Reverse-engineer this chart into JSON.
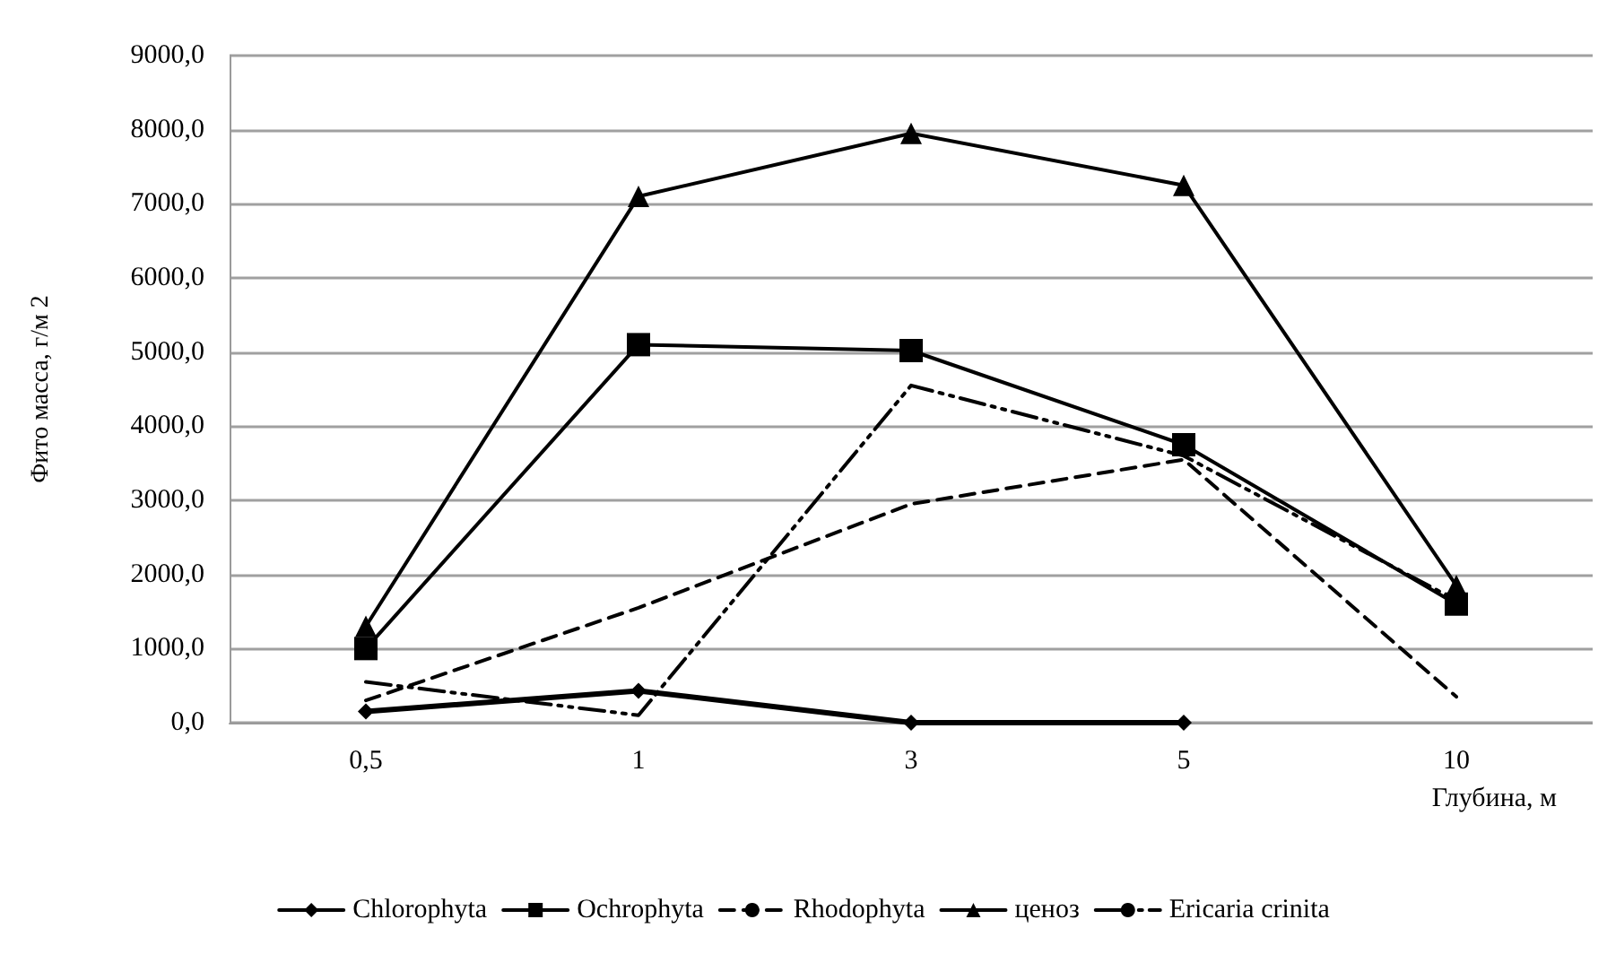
{
  "chart_data": {
    "type": "line",
    "xlabel": "Глубина, м",
    "ylabel": "Фито масса, г/м 2",
    "categories": [
      "0,5",
      "1",
      "3",
      "5",
      "10"
    ],
    "series": [
      {
        "name": "Chlorophyta",
        "color": "#000000",
        "marker": "diamond",
        "line_style": "solid",
        "values": [
          150,
          430,
          0,
          0,
          null
        ]
      },
      {
        "name": "Ochrophyta",
        "color": "#000000",
        "marker": "square",
        "line_style": "solid",
        "values": [
          1000,
          5100,
          5020,
          3750,
          1600
        ]
      },
      {
        "name": "Rhodophyta",
        "color": "#000000",
        "marker": "none",
        "line_style": "dashed",
        "values": [
          300,
          1550,
          2950,
          3550,
          350
        ]
      },
      {
        "name": "ценоз",
        "color": "#000000",
        "marker": "triangle",
        "line_style": "solid",
        "values": [
          1300,
          7100,
          7950,
          7250,
          1850
        ]
      },
      {
        "name": "Ericaria crinita",
        "color": "#000000",
        "marker": "none",
        "line_style": "dashdot",
        "values": [
          550,
          100,
          4550,
          3600,
          1650
        ]
      }
    ],
    "ylim": [
      0,
      9000
    ],
    "yticks": [
      {
        "value": 0,
        "label": "0,0"
      },
      {
        "value": 1000,
        "label": "1000,0"
      },
      {
        "value": 2000,
        "label": "2000,0"
      },
      {
        "value": 3000,
        "label": "3000,0"
      },
      {
        "value": 4000,
        "label": "4000,0"
      },
      {
        "value": 5000,
        "label": "5000,0"
      },
      {
        "value": 6000,
        "label": "6000,0"
      },
      {
        "value": 7000,
        "label": "7000,0"
      },
      {
        "value": 8000,
        "label": "8000,0"
      },
      {
        "value": 9000,
        "label": "9000,0"
      }
    ],
    "grid": "y",
    "legend": "bottom"
  }
}
